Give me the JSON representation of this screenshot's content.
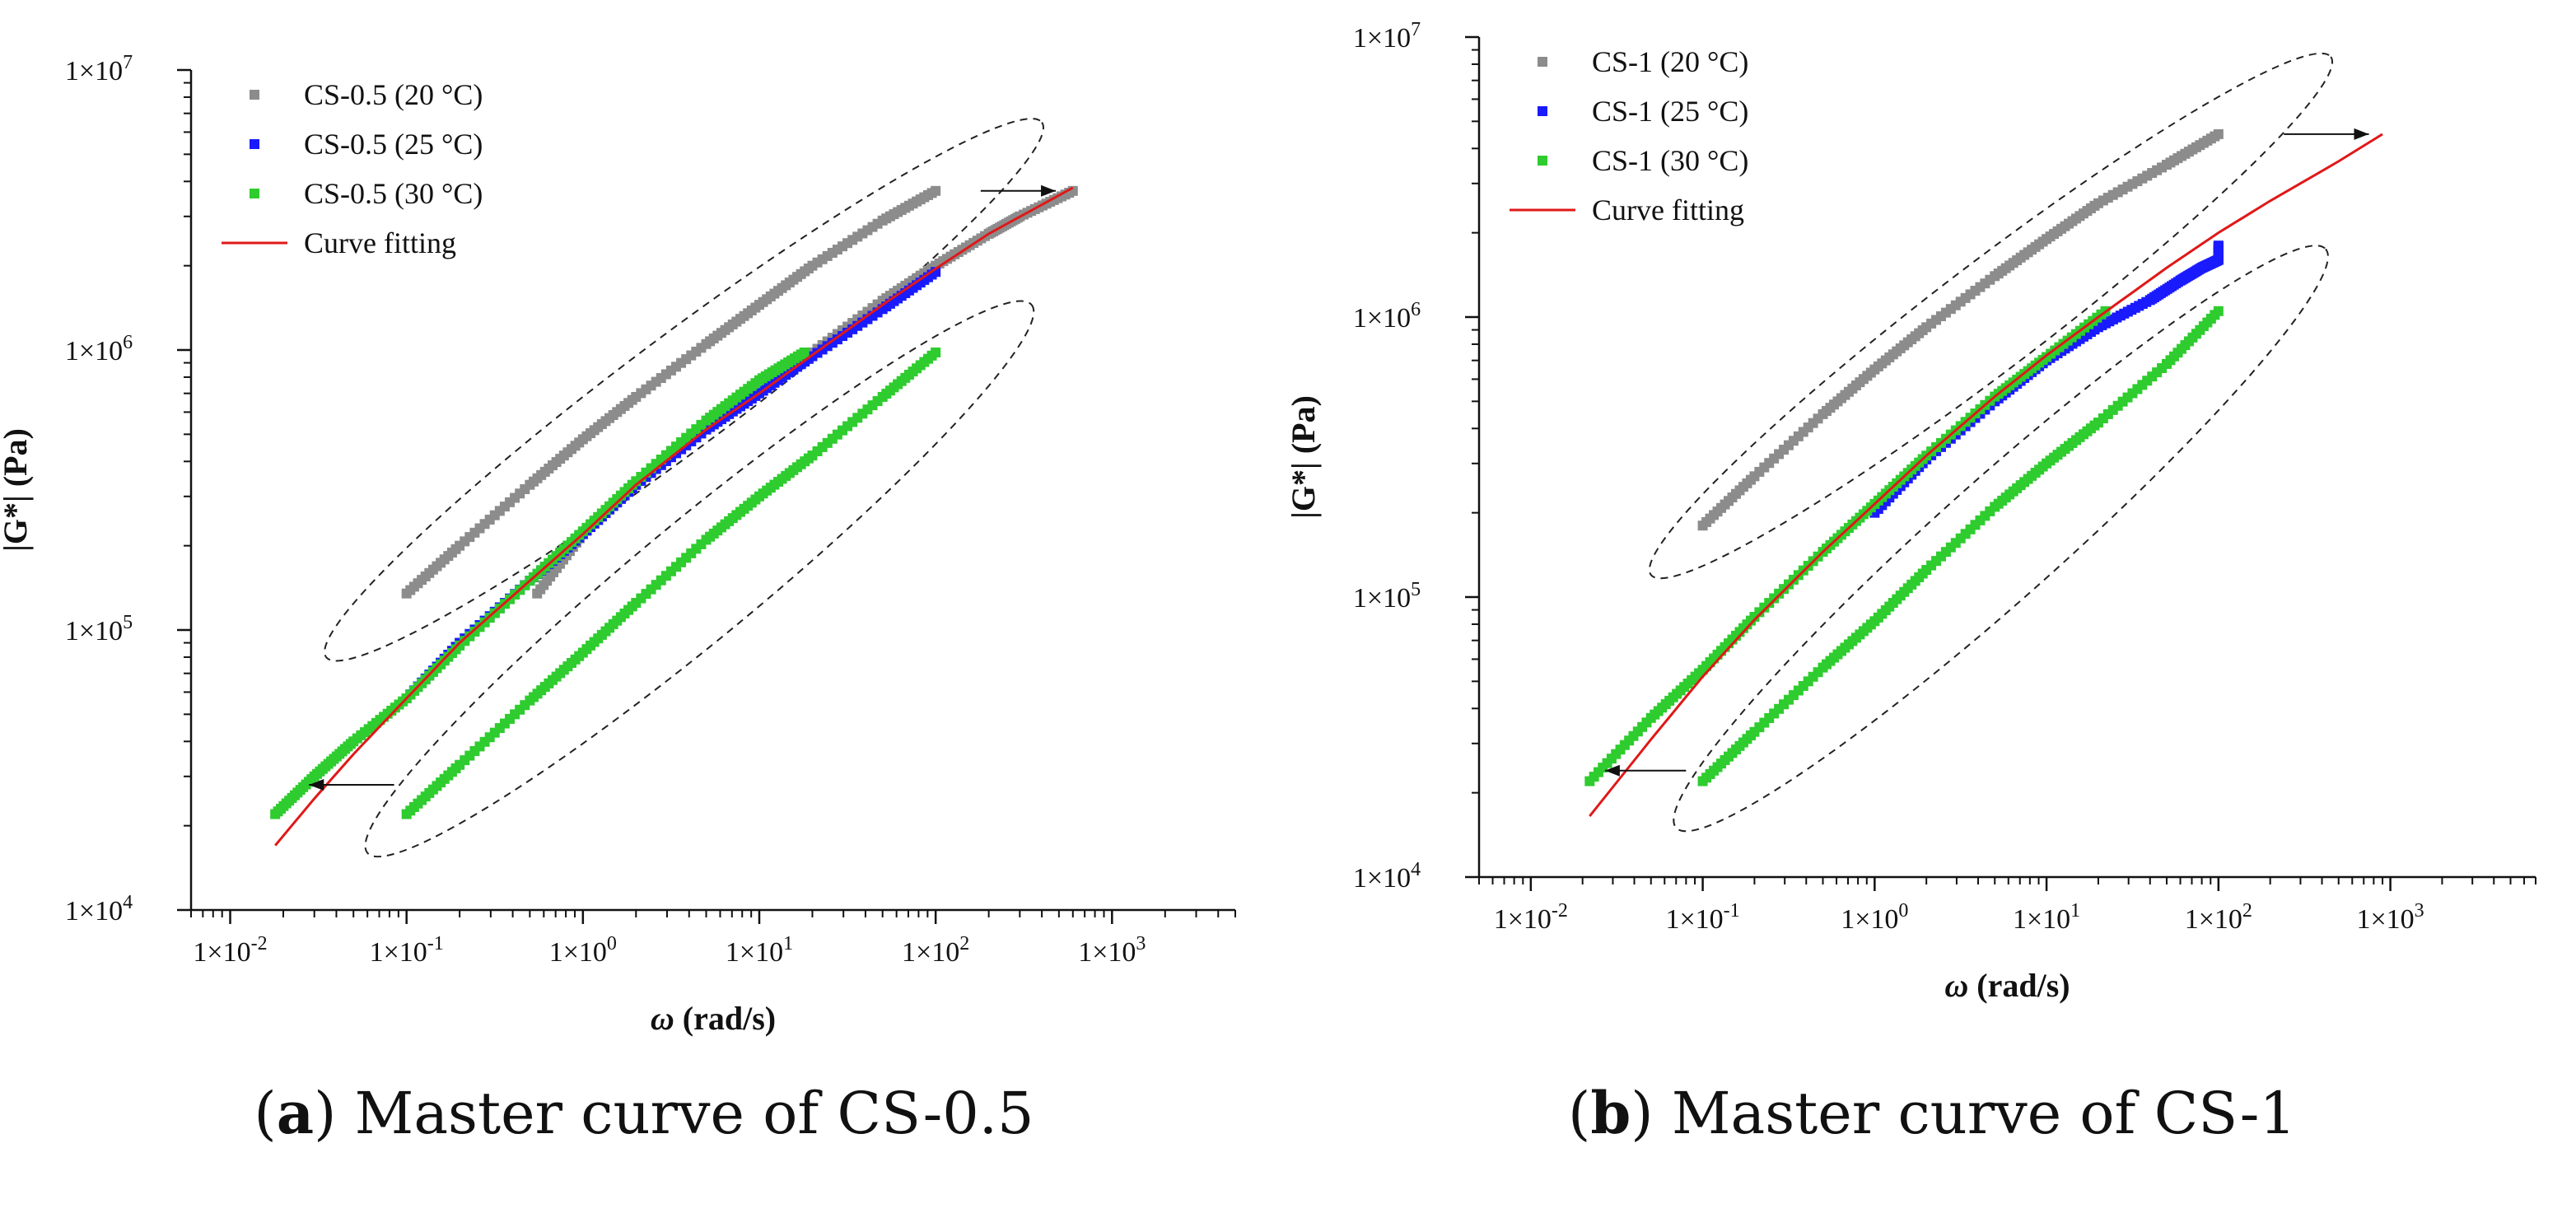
{
  "panels": [
    {
      "caption_letter": "a",
      "caption_text": "Master curve of CS-0.5",
      "chart_data": {
        "type": "scatter",
        "xlabel_symbol": "ω",
        "xlabel_unit": "(rad/s)",
        "ylabel": "|G*| (Pa)",
        "x_scale": "log",
        "y_scale": "log",
        "xlim": [
          0.006,
          5000
        ],
        "ylim": [
          10000,
          10000000
        ],
        "x_ticks": [
          {
            "mant": "1×10",
            "exp": "-2",
            "v": 0.01
          },
          {
            "mant": "1×10",
            "exp": "-1",
            "v": 0.1
          },
          {
            "mant": "1×10",
            "exp": "0",
            "v": 1
          },
          {
            "mant": "1×10",
            "exp": "1",
            "v": 10
          },
          {
            "mant": "1×10",
            "exp": "2",
            "v": 100
          },
          {
            "mant": "1×10",
            "exp": "3",
            "v": 1000
          }
        ],
        "y_ticks": [
          {
            "mant": "1×10",
            "exp": "4",
            "v": 10000
          },
          {
            "mant": "1×10",
            "exp": "5",
            "v": 100000
          },
          {
            "mant": "1×10",
            "exp": "6",
            "v": 1000000
          },
          {
            "mant": "1×10",
            "exp": "7",
            "v": 10000000
          }
        ],
        "legend_placement": "top-left",
        "series": [
          {
            "name": "CS-0.5 (20 °C)",
            "color": "#8c8c8c",
            "style": "marker",
            "x": [
              0.1,
              0.2,
              0.5,
              1,
              2,
              5,
              10,
              20,
              50,
              100
            ],
            "y": [
              135000,
              200000,
              330000,
              480000,
              680000,
              1050000,
              1450000,
              2000000,
              2900000,
              3700000
            ]
          },
          {
            "name": "CS-0.5 (20 °C)",
            "color": "#8c8c8c",
            "style": "marker",
            "x": [
              0.55,
              1,
              2,
              5,
              10,
              20,
              50,
              100,
              200,
              300,
              600
            ],
            "y": [
              135000,
              220000,
              330000,
              520000,
              700000,
              980000,
              1500000,
              2000000,
              2600000,
              3000000,
              3700000
            ]
          },
          {
            "name": "CS-0.5 (25 °C)",
            "color": "#1a1aff",
            "style": "marker",
            "x": [
              0.1,
              0.2,
              0.5,
              1,
              2,
              5,
              10,
              20,
              50,
              100
            ],
            "y": [
              57000,
              90000,
              150000,
              220000,
              330000,
              520000,
              700000,
              950000,
              1400000,
              1900000
            ]
          },
          {
            "name": "CS-0.5 (30 °C)",
            "color": "#2ecc2e",
            "style": "marker",
            "x": [
              0.1,
              0.2,
              0.5,
              1,
              2,
              5,
              10,
              20,
              50,
              100
            ],
            "y": [
              22000,
              33000,
              56000,
              83000,
              125000,
              210000,
              300000,
              420000,
              680000,
              980000
            ]
          },
          {
            "name": "CS-0.5 (30 °C)",
            "color": "#2ecc2e",
            "style": "marker",
            "x": [
              0.018,
              0.03,
              0.05,
              0.1,
              0.2,
              0.5,
              1,
              2,
              5,
              10,
              18
            ],
            "y": [
              22000,
              30000,
              40000,
              57000,
              88000,
              150000,
              225000,
              340000,
              560000,
              780000,
              980000
            ]
          },
          {
            "name": "Curve fitting",
            "color": "#e01818",
            "style": "line",
            "x": [
              0.018,
              0.03,
              0.05,
              0.1,
              0.2,
              0.5,
              1,
              2,
              5,
              10,
              20,
              50,
              100,
              200,
              600
            ],
            "y": [
              17000,
              25000,
              36000,
              57000,
              90000,
              150000,
              220000,
              330000,
              520000,
              700000,
              960000,
              1450000,
              1950000,
              2600000,
              3800000
            ]
          }
        ],
        "arrows": [
          {
            "from": [
              180,
              3700000
            ],
            "to": [
              480,
              3700000
            ]
          },
          {
            "from": [
              0.085,
              28000
            ],
            "to": [
              0.028,
              28000
            ]
          }
        ],
        "ellipses": [
          {
            "from": [
              0.035,
              80000
            ],
            "to": [
              400,
              6500000
            ],
            "thickness": 0.5
          },
          {
            "from": [
              0.06,
              16000
            ],
            "to": [
              350,
              1450000
            ],
            "thickness": 0.55
          }
        ]
      }
    },
    {
      "caption_letter": "b",
      "caption_text": "Master curve of CS-1",
      "chart_data": {
        "type": "scatter",
        "xlabel_symbol": "ω",
        "xlabel_unit": "(rad/s)",
        "ylabel": "|G*| (Pa)",
        "x_scale": "log",
        "y_scale": "log",
        "xlim": [
          0.005,
          7000
        ],
        "ylim": [
          10000,
          10000000
        ],
        "x_ticks": [
          {
            "mant": "1×10",
            "exp": "-2",
            "v": 0.01
          },
          {
            "mant": "1×10",
            "exp": "-1",
            "v": 0.1
          },
          {
            "mant": "1×10",
            "exp": "0",
            "v": 1
          },
          {
            "mant": "1×10",
            "exp": "1",
            "v": 10
          },
          {
            "mant": "1×10",
            "exp": "2",
            "v": 100
          },
          {
            "mant": "1×10",
            "exp": "3",
            "v": 1000
          }
        ],
        "y_ticks": [
          {
            "mant": "1×10",
            "exp": "4",
            "v": 10000
          },
          {
            "mant": "1×10",
            "exp": "5",
            "v": 100000
          },
          {
            "mant": "1×10",
            "exp": "6",
            "v": 1000000
          },
          {
            "mant": "1×10",
            "exp": "7",
            "v": 10000000
          }
        ],
        "legend_placement": "top-left",
        "series": [
          {
            "name": "CS-1 (20 °C)",
            "color": "#8c8c8c",
            "style": "marker",
            "x": [
              0.1,
              0.2,
              0.5,
              1,
              2,
              5,
              10,
              20,
              50,
              100
            ],
            "y": [
              180000,
              270000,
              450000,
              650000,
              920000,
              1400000,
              1900000,
              2550000,
              3500000,
              4500000
            ]
          },
          {
            "name": "CS-1 (25 °C)",
            "color": "#1a1aff",
            "style": "marker",
            "x": [
              1,
              2,
              5,
              10,
              20,
              40,
              60,
              80,
              100,
              100
            ],
            "y": [
              200000,
              310000,
              500000,
              700000,
              920000,
              1150000,
              1350000,
              1500000,
              1600000,
              1800000
            ]
          },
          {
            "name": "CS-1 (30 °C)",
            "color": "#2ecc2e",
            "style": "marker",
            "x": [
              0.1,
              0.2,
              0.5,
              1,
              2,
              5,
              10,
              20,
              50,
              100
            ],
            "y": [
              22000,
              33000,
              56000,
              82000,
              125000,
              210000,
              300000,
              420000,
              680000,
              1050000
            ]
          },
          {
            "name": "CS-1 (30 °C)",
            "color": "#2ecc2e",
            "style": "marker",
            "x": [
              0.022,
              0.05,
              0.1,
              0.2,
              0.5,
              1,
              2,
              5,
              10,
              22
            ],
            "y": [
              22000,
              37000,
              55000,
              85000,
              145000,
              215000,
              320000,
              520000,
              720000,
              1050000
            ]
          },
          {
            "name": "Curve fitting",
            "color": "#e01818",
            "style": "line",
            "x": [
              0.022,
              0.05,
              0.1,
              0.2,
              0.5,
              1,
              2,
              5,
              10,
              20,
              50,
              100,
              200,
              500,
              900
            ],
            "y": [
              16500,
              31000,
              52000,
              83000,
              145000,
              215000,
              320000,
              520000,
              730000,
              1000000,
              1500000,
              2000000,
              2600000,
              3600000,
              4500000
            ]
          }
        ],
        "arrows": [
          {
            "from": [
              240,
              4500000
            ],
            "to": [
              750,
              4500000
            ]
          },
          {
            "from": [
              0.08,
              24000
            ],
            "to": [
              0.027,
              24000
            ]
          }
        ],
        "ellipses": [
          {
            "from": [
              0.05,
              120000
            ],
            "to": [
              450,
              8500000
            ],
            "thickness": 0.5
          },
          {
            "from": [
              0.07,
              15000
            ],
            "to": [
              420,
              1750000
            ],
            "thickness": 0.55
          }
        ]
      }
    }
  ]
}
